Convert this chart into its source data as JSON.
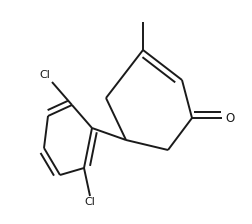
{
  "background_color": "#ffffff",
  "line_color": "#1a1a1a",
  "line_width": 1.4,
  "figsize": [
    2.52,
    2.24
  ],
  "dpi": 100,
  "xlim": [
    0.0,
    2.52
  ],
  "ylim": [
    0.0,
    2.24
  ]
}
